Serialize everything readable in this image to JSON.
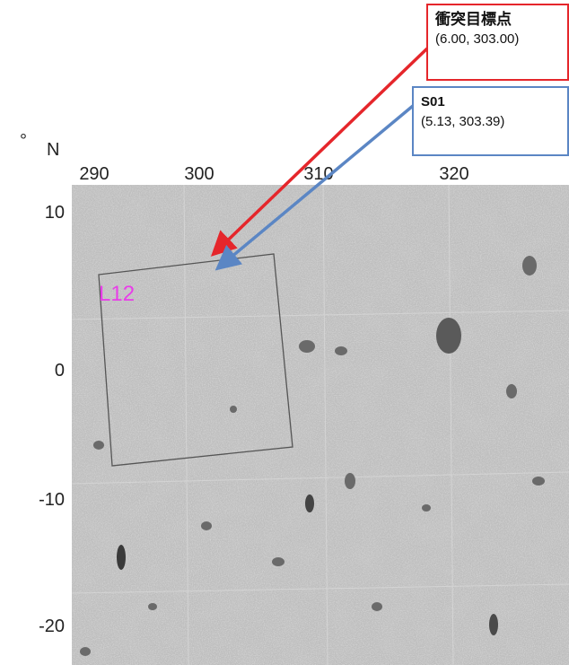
{
  "axes": {
    "degree_symbol": "°",
    "lat_unit": "N",
    "x_ticks": [
      "290",
      "300",
      "310",
      "320"
    ],
    "y_ticks": [
      "10",
      "0",
      "-10",
      "-20"
    ]
  },
  "region_label": "L12",
  "callouts": {
    "target": {
      "title": "衝突目標点",
      "coords": "(6.00, 303.00)",
      "color": "#e5262b"
    },
    "s01": {
      "title": "S01",
      "coords": "(5.13, 303.39)",
      "color": "#5b86c4"
    }
  },
  "colors": {
    "region_label": "#e83ee8",
    "surface": "#bdbdbd"
  }
}
